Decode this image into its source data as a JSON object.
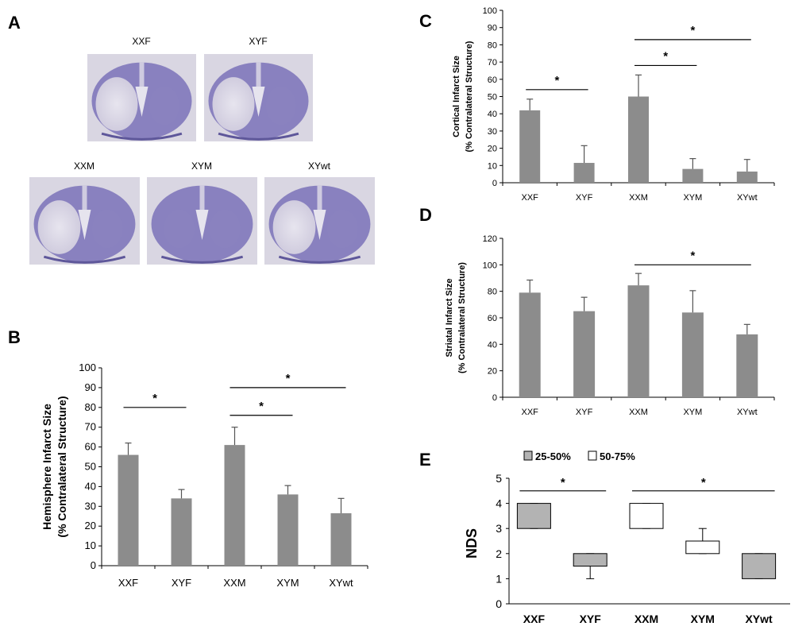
{
  "colors": {
    "bar": "#8c8c8c",
    "box_grey": "#b3b3b3",
    "box_white": "#ffffff",
    "slice_tissue": "#7a72b8",
    "slice_bg": "#d9d6e2"
  },
  "panel_a": {
    "letter": "A",
    "slices": [
      {
        "label": "XXF",
        "lesion": true
      },
      {
        "label": "XYF",
        "lesion": true
      },
      {
        "label": "XXM",
        "lesion": true
      },
      {
        "label": "XYM",
        "lesion": false
      },
      {
        "label": "XYwt",
        "lesion": true
      }
    ]
  },
  "chart_data": [
    {
      "panel": "B",
      "type": "bar",
      "categories": [
        "XXF",
        "XYF",
        "XXM",
        "XYM",
        "XYwt"
      ],
      "values": [
        56,
        34,
        61,
        36,
        26.5
      ],
      "errors": [
        6,
        4.5,
        9,
        4.5,
        7.5
      ],
      "ylabel_lines": [
        "Hemisphere Infarct Size",
        "(% Contralateral  Structure)"
      ],
      "ylim": [
        0,
        100
      ],
      "yticks": [
        0,
        10,
        20,
        30,
        40,
        50,
        60,
        70,
        80,
        90,
        100
      ],
      "significance": [
        {
          "from": 0,
          "to": 1,
          "level": 80,
          "label": "*"
        },
        {
          "from": 2,
          "to": 3,
          "level": 76,
          "label": "*"
        },
        {
          "from": 2,
          "to": 4,
          "level": 90,
          "label": "*"
        }
      ]
    },
    {
      "panel": "C",
      "type": "bar",
      "categories": [
        "XXF",
        "XYF",
        "XXM",
        "XYM",
        "XYwt"
      ],
      "values": [
        42,
        11.5,
        50,
        8,
        6.5
      ],
      "errors": [
        6.5,
        10,
        12.5,
        6,
        7
      ],
      "ylabel_lines": [
        "Cortical Infarct Size",
        "(% Contralateral Structure)"
      ],
      "ylim": [
        0,
        100
      ],
      "yticks": [
        0,
        10,
        20,
        30,
        40,
        50,
        60,
        70,
        80,
        90,
        100
      ],
      "significance": [
        {
          "from": 0,
          "to": 1,
          "level": 54,
          "label": "*"
        },
        {
          "from": 2,
          "to": 3,
          "level": 68,
          "label": "*"
        },
        {
          "from": 2,
          "to": 4,
          "level": 83,
          "label": "*"
        }
      ]
    },
    {
      "panel": "D",
      "type": "bar",
      "categories": [
        "XXF",
        "XYF",
        "XXM",
        "XYM",
        "XYwt"
      ],
      "values": [
        79,
        65,
        84.5,
        64,
        47.5
      ],
      "errors": [
        9.5,
        10.5,
        9,
        16.5,
        7.5
      ],
      "ylabel_lines": [
        "Striatal Infarct Size",
        "(% Contralateral Structure)"
      ],
      "ylim": [
        0,
        120
      ],
      "yticks": [
        0,
        20,
        40,
        60,
        80,
        100,
        120
      ],
      "significance": [
        {
          "from": 2,
          "to": 4,
          "level": 100,
          "label": "*"
        }
      ]
    },
    {
      "panel": "E",
      "type": "box",
      "categories": [
        "XXF",
        "XYF",
        "XXM",
        "XYM",
        "XYwt"
      ],
      "ylabel": "NDS",
      "ylim": [
        0,
        5
      ],
      "yticks": [
        0,
        1,
        2,
        3,
        4,
        5
      ],
      "legend": [
        {
          "label": "25-50%",
          "color": "#b3b3b3"
        },
        {
          "label": "50-75%",
          "color": "#ffffff"
        }
      ],
      "boxes": [
        {
          "q1": 3,
          "median": 4,
          "q3": 4,
          "min": 3,
          "max": 4
        },
        {
          "q1": 1.5,
          "median": 2,
          "q3": 2,
          "min": 1,
          "max": 2
        },
        {
          "q1": 3,
          "median": 3,
          "q3": 4,
          "min": 3,
          "max": 4
        },
        {
          "q1": 2,
          "median": 2,
          "q3": 2.5,
          "min": 2,
          "max": 3
        },
        {
          "q1": 1,
          "median": 2,
          "q3": 2,
          "min": 1,
          "max": 2
        }
      ],
      "significance": [
        {
          "from": 0,
          "to": 1,
          "level": 4.5,
          "label": "*"
        },
        {
          "from": 2,
          "to": 4,
          "level": 4.5,
          "label": "*"
        }
      ]
    }
  ]
}
